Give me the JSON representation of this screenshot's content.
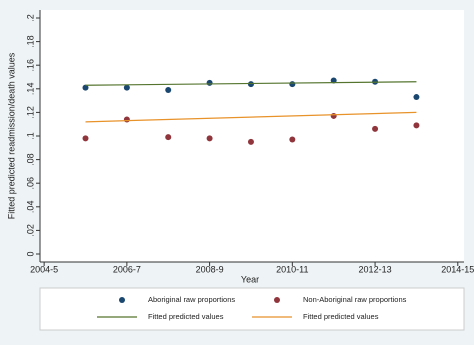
{
  "chart_data": {
    "type": "scatter",
    "x_label": "Year",
    "y_label": "Fitted predicted readmission/death values",
    "xlim": [
      2003.9,
      2014.15
    ],
    "ylim": [
      0,
      0.2
    ],
    "xticks": [
      {
        "value": 2004,
        "label": "2004-5"
      },
      {
        "value": 2006,
        "label": "2006-7"
      },
      {
        "value": 2008,
        "label": "2008-9"
      },
      {
        "value": 2010,
        "label": "2010-11"
      },
      {
        "value": 2012,
        "label": "2012-13"
      },
      {
        "value": 2014,
        "label": "2014-15"
      }
    ],
    "yticks": [
      0,
      {
        "value": 0.02,
        "label": ".02"
      },
      {
        "value": 0.04,
        "label": ".04"
      },
      {
        "value": 0.06,
        "label": ".06"
      },
      {
        "value": 0.08,
        "label": ".08"
      },
      {
        "value": 0.1,
        "label": ".1"
      },
      {
        "value": 0.12,
        "label": ".12"
      },
      {
        "value": 0.14,
        "label": ".14"
      },
      {
        "value": 0.16,
        "label": ".16"
      },
      {
        "value": 0.18,
        "label": ".18"
      },
      {
        "value": 0.2,
        "label": ".2"
      }
    ],
    "grid": false,
    "legend": "bottom",
    "series": [
      {
        "name": "Aboriginal raw proportions",
        "mode": "markers",
        "color": "#1a476f",
        "x": [
          2005,
          2006,
          2007,
          2008,
          2009,
          2010,
          2011,
          2012,
          2013
        ],
        "values": [
          0.141,
          0.141,
          0.139,
          0.145,
          0.144,
          0.144,
          0.147,
          0.146,
          0.133
        ]
      },
      {
        "name": "Non-Aboriginal raw proportions",
        "mode": "markers",
        "color": "#90353b",
        "x": [
          2005,
          2006,
          2007,
          2008,
          2009,
          2010,
          2011,
          2012,
          2013
        ],
        "values": [
          0.098,
          0.114,
          0.099,
          0.098,
          0.095,
          0.097,
          0.117,
          0.106,
          0.109
        ]
      },
      {
        "name": "Fitted predicted values",
        "mode": "line",
        "color": "#55752f",
        "x": [
          2005,
          2013
        ],
        "values": [
          0.143,
          0.146
        ]
      },
      {
        "name": "Fitted predicted values",
        "mode": "line",
        "color": "#e8922a",
        "x": [
          2005,
          2013
        ],
        "values": [
          0.112,
          0.12
        ]
      }
    ]
  }
}
